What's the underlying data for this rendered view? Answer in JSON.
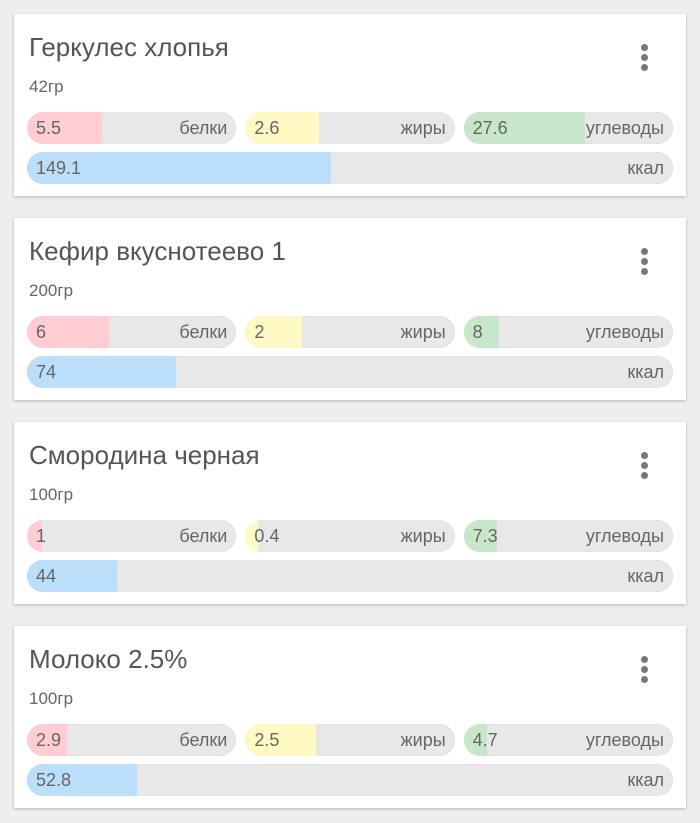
{
  "colors": {
    "protein": "#ffcdd2",
    "fat": "#fff9c4",
    "carbs": "#c8e6c9",
    "kcal": "#bbdefb"
  },
  "labels": {
    "protein": "белки",
    "fat": "жиры",
    "carbs": "углеводы",
    "kcal": "ккал"
  },
  "items": [
    {
      "name": "Геркулес хлопья",
      "weight": "42гр",
      "protein": "5.5",
      "fat": "2.6",
      "carbs": "27.6",
      "kcal": "149.1",
      "fill": {
        "protein": 36,
        "fat": 35,
        "carbs": 58,
        "kcal": 47
      }
    },
    {
      "name": "Кефир вкуснотеево 1",
      "weight": "200гр",
      "protein": "6",
      "fat": "2",
      "carbs": "8",
      "kcal": "74",
      "fill": {
        "protein": 39,
        "fat": 27,
        "carbs": 17,
        "kcal": 23
      }
    },
    {
      "name": "Смородина черная",
      "weight": "100гр",
      "protein": "1",
      "fat": "0.4",
      "carbs": "7.3",
      "kcal": "44",
      "fill": {
        "protein": 7,
        "fat": 6,
        "carbs": 16,
        "kcal": 14
      }
    },
    {
      "name": "Молоко 2.5%",
      "weight": "100гр",
      "protein": "2.9",
      "fat": "2.5",
      "carbs": "4.7",
      "kcal": "52.8",
      "fill": {
        "protein": 19,
        "fat": 34,
        "carbs": 11,
        "kcal": 17
      }
    }
  ]
}
